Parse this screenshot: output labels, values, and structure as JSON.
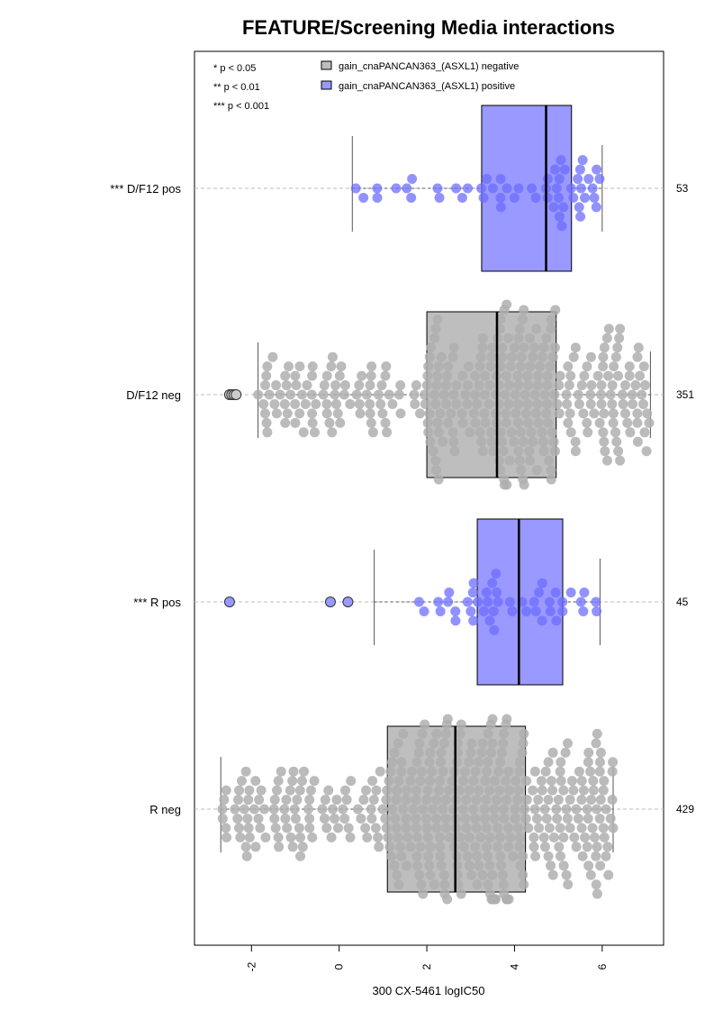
{
  "chart_data": {
    "type": "boxplot-beeswarm",
    "title": "FEATURE/Screening Media interactions",
    "xlabel": "300 CX-5461 logIC50",
    "xlim": [
      -3.3,
      7.4
    ],
    "x_ticks": [
      "-2",
      "0",
      "2",
      "4",
      "6"
    ],
    "x_tick_values": [
      -2,
      0,
      2,
      4,
      6
    ],
    "orientation": "horizontal",
    "grid": "dashed horizontal line at each category",
    "legend_position": "top",
    "significance_legend": [
      "* p < 0.05",
      "** p < 0.01",
      "*** p < 0.001"
    ],
    "series": [
      {
        "name": "gain_cnaPANCAN363_(ASXL1) negative",
        "color": "#bebebe"
      },
      {
        "name": "gain_cnaPANCAN363_(ASXL1) positive",
        "color": "#9999ff"
      }
    ],
    "groups": [
      {
        "label": "*** D/F12 pos",
        "count": "53",
        "series": 1,
        "min": 0.3,
        "q1": 3.25,
        "median": 4.72,
        "q3": 5.3,
        "max": 6.0,
        "outliers": [],
        "n_points": 53
      },
      {
        "label": "D/F12 neg",
        "count": "351",
        "series": 0,
        "min": -1.85,
        "q1": 2.0,
        "median": 3.6,
        "q3": 4.95,
        "max": 7.1,
        "outliers": [
          -2.5,
          -2.45,
          -2.4,
          -2.35
        ],
        "n_points": 351
      },
      {
        "label": "*** R pos",
        "count": "45",
        "series": 1,
        "min": 0.8,
        "q1": 3.15,
        "median": 4.1,
        "q3": 5.1,
        "max": 5.95,
        "outliers": [
          -2.5,
          -0.2,
          0.2
        ],
        "n_points": 45
      },
      {
        "label": "R neg",
        "count": "429",
        "series": 0,
        "min": -2.7,
        "q1": 1.1,
        "median": 2.65,
        "q3": 4.25,
        "max": 6.25,
        "outliers": [],
        "n_points": 429
      }
    ]
  }
}
